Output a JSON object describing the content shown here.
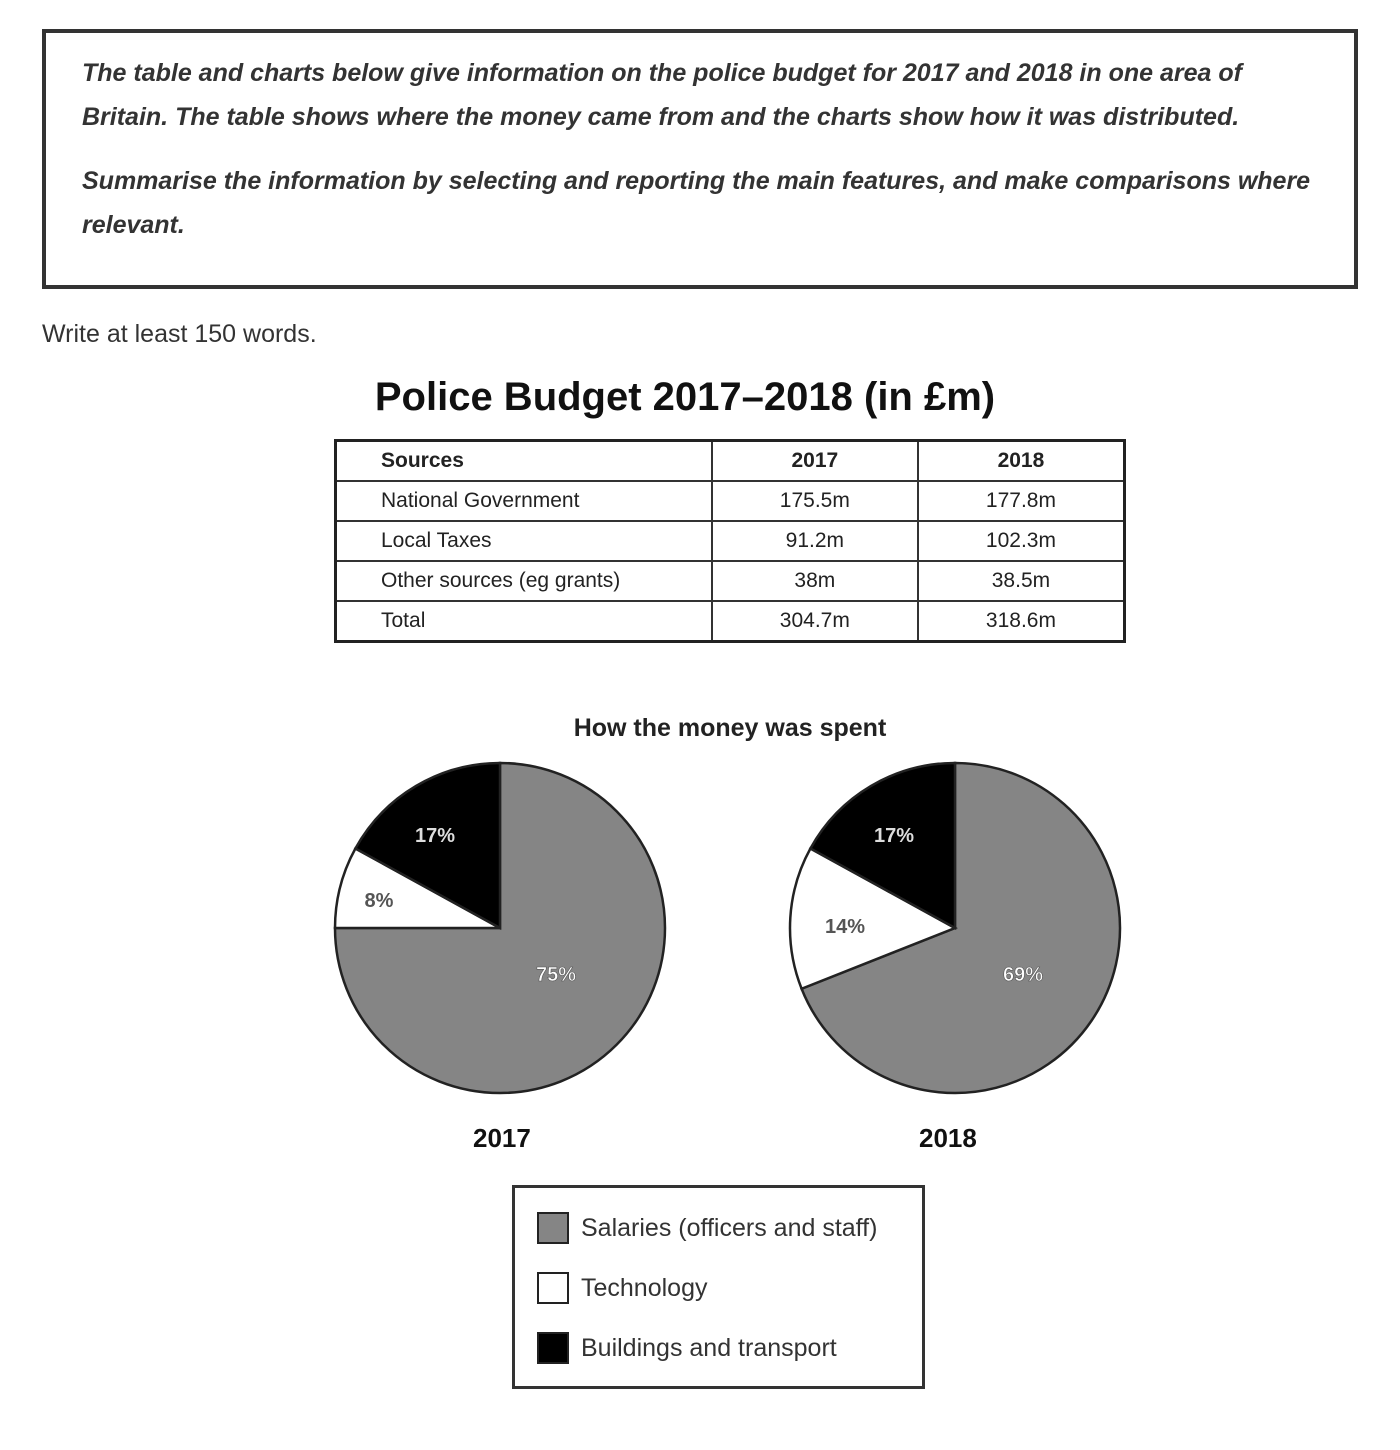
{
  "task": {
    "paragraph1": "The table and charts below give information on the police budget for 2017 and 2018 in one area of Britain. The table shows where the money came from and the charts show how it was distributed.",
    "paragraph2": "Summarise the information by selecting and reporting the main features, and make comparisons where relevant."
  },
  "instruction": "Write at least 150 words.",
  "figure_title": "Police Budget 2017–2018 (in £m)",
  "table": {
    "headers": [
      "Sources",
      "2017",
      "2018"
    ],
    "rows": [
      [
        "National Government",
        "175.5m",
        "177.8m"
      ],
      [
        "Local Taxes",
        "91.2m",
        "102.3m"
      ],
      [
        "Other sources (eg grants)",
        "38m",
        "38.5m"
      ],
      [
        "Total",
        "304.7m",
        "318.6m"
      ]
    ]
  },
  "chart_data": [
    {
      "type": "table",
      "title": "Police Budget 2017–2018 (in £m)",
      "columns": [
        "Sources",
        "2017",
        "2018"
      ],
      "rows": [
        [
          "National Government",
          175.5,
          177.8
        ],
        [
          "Local Taxes",
          91.2,
          102.3
        ],
        [
          "Other sources (eg grants)",
          38,
          38.5
        ],
        [
          "Total",
          304.7,
          318.6
        ]
      ]
    },
    {
      "type": "pie",
      "title": "How the money was spent",
      "caption": "2017",
      "labels": [
        "Salaries (officers and staff)",
        "Technology",
        "Buildings and transport"
      ],
      "values": [
        75,
        8,
        17
      ],
      "value_labels": [
        "75%",
        "8%",
        "17%"
      ],
      "colors": [
        "#858585",
        "#ffffff",
        "#000000"
      ]
    },
    {
      "type": "pie",
      "title": "How the money was spent",
      "caption": "2018",
      "labels": [
        "Salaries (officers and staff)",
        "Technology",
        "Buildings and transport"
      ],
      "values": [
        69,
        14,
        17
      ],
      "value_labels": [
        "69%",
        "14%",
        "17%"
      ],
      "colors": [
        "#858585",
        "#ffffff",
        "#000000"
      ]
    }
  ],
  "spent_title": "How the money was spent",
  "legend": [
    {
      "label": "Salaries (officers and staff)",
      "color": "#858585"
    },
    {
      "label": "Technology",
      "color": "#ffffff"
    },
    {
      "label": "Buildings and transport",
      "color": "#000000"
    }
  ]
}
